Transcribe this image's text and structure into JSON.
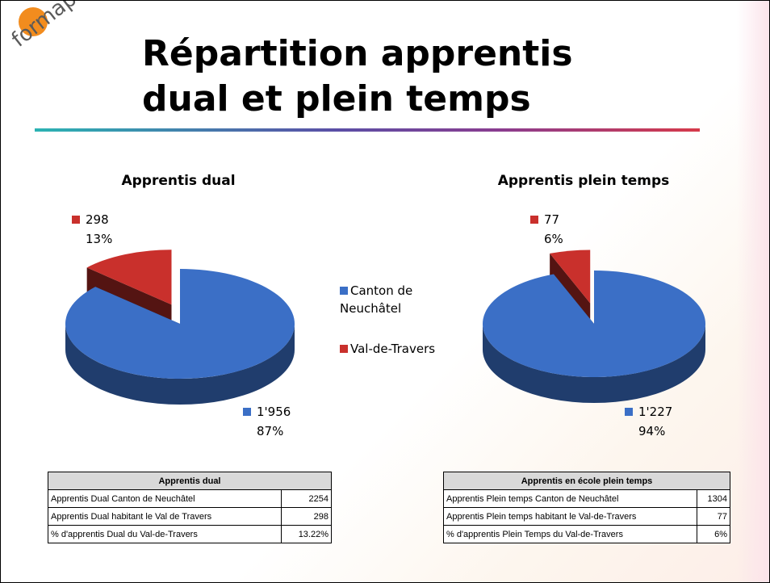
{
  "header": {
    "logo": "formapro",
    "title": "Répartition apprentis dual et plein temps"
  },
  "legend": {
    "items": [
      {
        "name": "Canton de Neuchâtel",
        "color": "#3b6fc6"
      },
      {
        "name": "Val-de-Travers",
        "color": "#c9302c"
      }
    ]
  },
  "chart_data": [
    {
      "type": "pie",
      "title": "Apprentis dual",
      "values": [
        1956,
        298
      ],
      "value_labels": [
        "1'956",
        "298"
      ],
      "percents": [
        87,
        13
      ],
      "percent_labels": [
        "87%",
        "13%"
      ]
    },
    {
      "type": "pie",
      "title": "Apprentis plein temps",
      "values": [
        1227,
        77
      ],
      "value_labels": [
        "1'227",
        "77"
      ],
      "percents": [
        94,
        6
      ],
      "percent_labels": [
        "94%",
        "6%"
      ]
    }
  ],
  "tables": [
    {
      "title": "Apprentis dual",
      "rows": [
        [
          "Apprentis Dual Canton de Neuchâtel",
          "2254"
        ],
        [
          "Apprentis Dual habitant le Val de Travers",
          "298"
        ],
        [
          "% d'apprentis Dual du Val-de-Travers",
          "13.22%"
        ]
      ]
    },
    {
      "title": "Apprentis en école plein temps",
      "rows": [
        [
          "Apprentis Plein temps Canton de Neuchâtel",
          "1304"
        ],
        [
          "Apprentis Plein temps habitant le Val-de-Travers",
          "77"
        ],
        [
          "% d'apprentis Plein Temps du Val-de-Travers",
          "6%"
        ]
      ]
    }
  ]
}
